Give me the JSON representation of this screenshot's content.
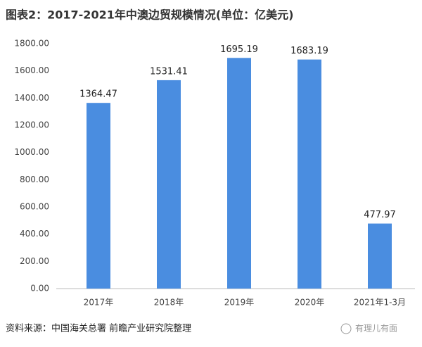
{
  "chart_data": {
    "type": "bar",
    "title": "图表2：2017-2021年中澳边贸规模情况(单位：亿美元)",
    "categories": [
      "2017年",
      "2018年",
      "2019年",
      "2020年",
      "2021年1-3月"
    ],
    "values": [
      1364.47,
      1531.41,
      1695.19,
      1683.19,
      477.97
    ],
    "color": "#4a8de0",
    "ylim": [
      0,
      1800
    ],
    "yticks": [
      {
        "value": 0,
        "label": "0.00"
      },
      {
        "value": 200,
        "label": "200.00"
      },
      {
        "value": 400,
        "label": "400.00"
      },
      {
        "value": 600,
        "label": "600.00"
      },
      {
        "value": 800,
        "label": "800.00"
      },
      {
        "value": 1000,
        "label": "1000.00"
      },
      {
        "value": 1200,
        "label": "1200.00"
      },
      {
        "value": 1400,
        "label": "1400.00"
      },
      {
        "value": 1600,
        "label": "1600.00"
      },
      {
        "value": 1800,
        "label": "1800.00"
      }
    ],
    "grid": false,
    "source": "资料来源：中国海关总署 前瞻产业研究院整理",
    "watermark": "有理儿有面"
  }
}
